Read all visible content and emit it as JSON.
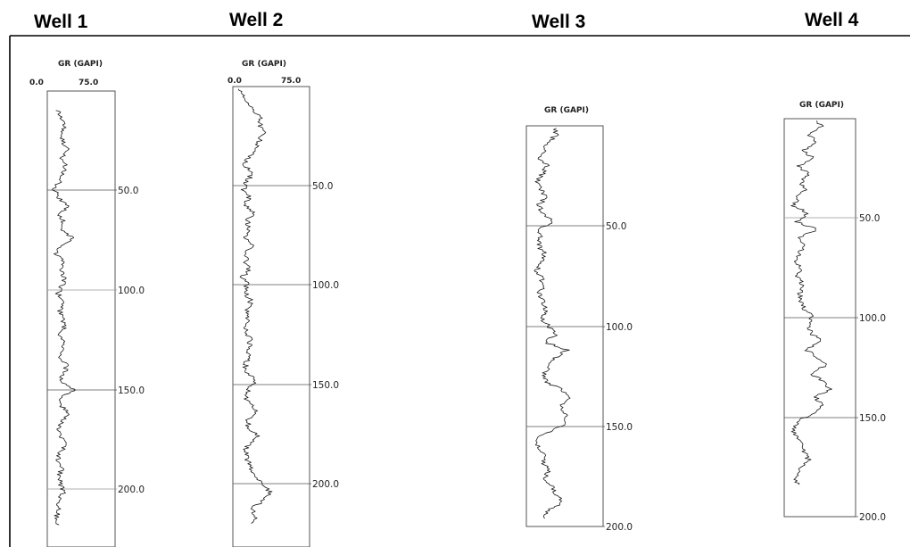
{
  "chart_data": [
    {
      "type": "line",
      "title": "Well 1",
      "track_label": "GR (GAPI)",
      "scale_min_label": "0.0",
      "scale_max_label": "75.0",
      "xlim": [
        0,
        75
      ],
      "ylim": [
        220,
        0
      ],
      "depth_ticks": [
        "50.0",
        "100.0",
        "150.0",
        "200.0"
      ],
      "y": [
        10,
        14,
        18,
        22,
        26,
        30,
        34,
        38,
        42,
        46,
        50,
        54,
        58,
        62,
        66,
        70,
        74,
        78,
        82,
        86,
        90,
        94,
        98,
        102,
        106,
        110,
        114,
        118,
        122,
        126,
        130,
        134,
        138,
        142,
        146,
        150,
        154,
        158,
        162,
        166,
        170,
        174,
        178,
        182,
        186,
        190,
        194,
        198,
        202,
        206,
        210,
        214,
        218
      ],
      "x": [
        12,
        16,
        20,
        14,
        18,
        22,
        15,
        20,
        17,
        13,
        8,
        12,
        25,
        12,
        18,
        14,
        28,
        16,
        10,
        18,
        14,
        20,
        16,
        12,
        18,
        14,
        16,
        20,
        14,
        18,
        16,
        12,
        22,
        18,
        14,
        30,
        16,
        14,
        25,
        16,
        12,
        15,
        20,
        14,
        11,
        16,
        13,
        15,
        18,
        12,
        14,
        10,
        13
      ]
    },
    {
      "type": "line",
      "title": "Well 2",
      "track_label": "GR (GAPI)",
      "scale_min_label": "0.0",
      "scale_max_label": "75.0",
      "xlim": [
        0,
        75
      ],
      "ylim": [
        220,
        0
      ],
      "depth_ticks": [
        "50.0",
        "100.0",
        "150.0",
        "200.0"
      ],
      "y": [
        0,
        4,
        8,
        12,
        16,
        20,
        24,
        28,
        32,
        36,
        40,
        44,
        48,
        52,
        56,
        60,
        64,
        68,
        72,
        76,
        80,
        84,
        88,
        92,
        96,
        100,
        104,
        108,
        112,
        116,
        120,
        124,
        128,
        132,
        136,
        140,
        144,
        148,
        152,
        156,
        160,
        164,
        168,
        172,
        176,
        180,
        184,
        188,
        192,
        196,
        200,
        204,
        208,
        212,
        216,
        220
      ],
      "x": [
        5,
        10,
        14,
        20,
        28,
        26,
        30,
        25,
        22,
        15,
        12,
        18,
        14,
        10,
        16,
        12,
        20,
        14,
        16,
        12,
        18,
        14,
        12,
        16,
        10,
        14,
        12,
        18,
        14,
        16,
        12,
        14,
        18,
        14,
        16,
        12,
        14,
        22,
        16,
        12,
        18,
        22,
        14,
        16,
        24,
        16,
        12,
        14,
        18,
        22,
        30,
        36,
        32,
        20,
        22,
        18
      ]
    },
    {
      "type": "line",
      "title": "Well 3",
      "track_label": "GR (GAPI)",
      "xlim": [
        0,
        75
      ],
      "ylim": [
        200,
        0
      ],
      "depth_ticks": [
        "50.0",
        "100.0",
        "150.0",
        "200.0"
      ],
      "y": [
        0,
        4,
        8,
        12,
        16,
        20,
        24,
        28,
        32,
        36,
        40,
        44,
        48,
        52,
        56,
        60,
        64,
        68,
        72,
        76,
        80,
        84,
        88,
        92,
        96,
        100,
        104,
        108,
        112,
        116,
        120,
        124,
        128,
        132,
        136,
        140,
        144,
        148,
        152,
        156,
        160,
        164,
        168,
        172,
        176,
        180,
        184,
        188,
        192,
        196
      ],
      "x": [
        25,
        30,
        22,
        18,
        12,
        20,
        16,
        10,
        14,
        18,
        12,
        16,
        28,
        10,
        14,
        12,
        18,
        16,
        10,
        14,
        18,
        12,
        16,
        20,
        14,
        22,
        30,
        18,
        40,
        28,
        22,
        18,
        20,
        35,
        45,
        32,
        38,
        40,
        26,
        8,
        12,
        18,
        16,
        22,
        18,
        26,
        30,
        35,
        22,
        18
      ]
    },
    {
      "type": "line",
      "title": "Well 4",
      "track_label": "GR (GAPI)",
      "xlim": [
        0,
        75
      ],
      "ylim": [
        200,
        0
      ],
      "depth_ticks": [
        "50.0",
        "100.0",
        "150.0",
        "200.0"
      ],
      "y": [
        0,
        4,
        8,
        12,
        16,
        20,
        24,
        28,
        32,
        36,
        40,
        44,
        48,
        52,
        56,
        60,
        64,
        68,
        72,
        76,
        80,
        84,
        88,
        92,
        96,
        100,
        104,
        108,
        112,
        116,
        120,
        124,
        128,
        132,
        136,
        140,
        144,
        148,
        152,
        156,
        160,
        164,
        168,
        172,
        176,
        180,
        184
      ],
      "x": [
        30,
        40,
        25,
        35,
        20,
        30,
        15,
        25,
        18,
        22,
        14,
        10,
        26,
        12,
        35,
        14,
        20,
        16,
        12,
        18,
        14,
        20,
        16,
        18,
        22,
        30,
        25,
        28,
        40,
        22,
        35,
        45,
        28,
        40,
        48,
        32,
        42,
        30,
        15,
        10,
        12,
        18,
        22,
        26,
        14,
        12,
        15
      ]
    }
  ]
}
